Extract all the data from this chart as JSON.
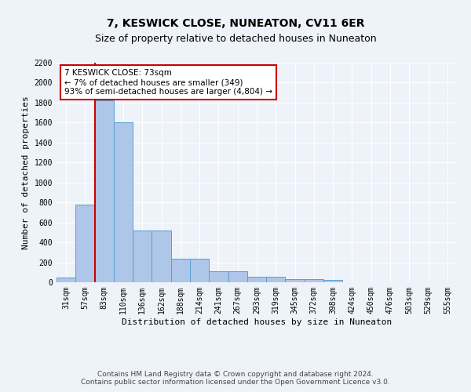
{
  "title": "7, KESWICK CLOSE, NUNEATON, CV11 6ER",
  "subtitle": "Size of property relative to detached houses in Nuneaton",
  "xlabel": "Distribution of detached houses by size in Nuneaton",
  "ylabel": "Number of detached properties",
  "bar_labels": [
    "31sqm",
    "57sqm",
    "83sqm",
    "110sqm",
    "136sqm",
    "162sqm",
    "188sqm",
    "214sqm",
    "241sqm",
    "267sqm",
    "293sqm",
    "319sqm",
    "345sqm",
    "372sqm",
    "398sqm",
    "424sqm",
    "450sqm",
    "476sqm",
    "503sqm",
    "529sqm",
    "555sqm"
  ],
  "bar_heights": [
    45,
    780,
    1820,
    1600,
    520,
    520,
    235,
    235,
    110,
    110,
    55,
    55,
    35,
    35,
    20,
    0,
    0,
    0,
    0,
    0,
    0
  ],
  "bar_color": "#aec6e8",
  "bar_edge_color": "#5a9fd4",
  "red_line_x": 1.5,
  "annotation_text": "7 KESWICK CLOSE: 73sqm\n← 7% of detached houses are smaller (349)\n93% of semi-detached houses are larger (4,804) →",
  "annotation_box_color": "#ffffff",
  "annotation_box_edge": "#cc0000",
  "ylim": [
    0,
    2200
  ],
  "yticks": [
    0,
    200,
    400,
    600,
    800,
    1000,
    1200,
    1400,
    1600,
    1800,
    2000,
    2200
  ],
  "footer": "Contains HM Land Registry data © Crown copyright and database right 2024.\nContains public sector information licensed under the Open Government Licence v3.0.",
  "background_color": "#eef2f9",
  "grid_color": "#ffffff",
  "title_fontsize": 10,
  "subtitle_fontsize": 9,
  "axis_label_fontsize": 8,
  "tick_fontsize": 7,
  "footer_fontsize": 6.5
}
